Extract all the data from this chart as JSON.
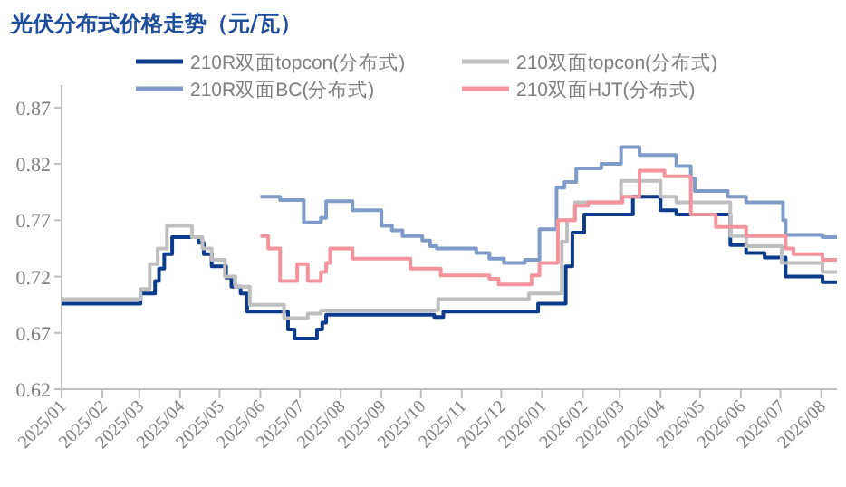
{
  "chart_data": {
    "type": "step",
    "title": "光伏分布式价格走势（元/瓦）",
    "xlim": [
      "2025-01-01",
      "2026-08-13"
    ],
    "ylim": [
      0.62,
      0.89
    ],
    "yticks": [
      0.62,
      0.67,
      0.72,
      0.77,
      0.82,
      0.87
    ],
    "xticks": [
      {
        "value": "2025-01-01",
        "label": "2025/01"
      },
      {
        "value": "2025-02-01",
        "label": "2025/02"
      },
      {
        "value": "2025-03-01",
        "label": "2025/03"
      },
      {
        "value": "2025-04-01",
        "label": "2025/04"
      },
      {
        "value": "2025-05-01",
        "label": "2025/05"
      },
      {
        "value": "2025-06-01",
        "label": "2025/06"
      },
      {
        "value": "2025-07-01",
        "label": "2025/07"
      },
      {
        "value": "2025-08-01",
        "label": "2025/08"
      },
      {
        "value": "2025-09-01",
        "label": "2025/09"
      },
      {
        "value": "2025-10-01",
        "label": "2025/10"
      },
      {
        "value": "2025-11-01",
        "label": "2025/11"
      },
      {
        "value": "2025-12-01",
        "label": "2025/12"
      },
      {
        "value": "2026-01-01",
        "label": "2026/01"
      },
      {
        "value": "2026-02-01",
        "label": "2026/02"
      },
      {
        "value": "2026-03-01",
        "label": "2026/03"
      },
      {
        "value": "2026-04-01",
        "label": "2026/04"
      },
      {
        "value": "2026-05-01",
        "label": "2026/05"
      },
      {
        "value": "2026-06-01",
        "label": "2026/06"
      },
      {
        "value": "2026-07-01",
        "label": "2026/07"
      },
      {
        "value": "2026-08-01",
        "label": "2026/08"
      }
    ],
    "grid": false,
    "legend": "top",
    "marker": "none",
    "line_style": "solid",
    "series": [
      {
        "name": "210R双面topcon(分布式)",
        "color": "#0b3c8c",
        "x": [
          "2025-01-01",
          "2025-03-02",
          "2025-03-13",
          "2025-03-16",
          "2025-03-20",
          "2025-03-26",
          "2025-04-15",
          "2025-04-19",
          "2025-04-25",
          "2025-05-06",
          "2025-05-10",
          "2025-05-17",
          "2025-05-22",
          "2025-06-22",
          "2025-06-27",
          "2025-07-14",
          "2025-07-18",
          "2025-07-21",
          "2025-10-11",
          "2025-10-18",
          "2025-12-29",
          "2026-01-19",
          "2026-01-24",
          "2026-02-02",
          "2026-03-11",
          "2026-04-01",
          "2026-04-13",
          "2026-05-24",
          "2026-06-05",
          "2026-06-19",
          "2026-07-05",
          "2026-08-02",
          "2026-08-13"
        ],
        "values": [
          0.696,
          0.705,
          0.716,
          0.727,
          0.74,
          0.755,
          0.75,
          0.74,
          0.729,
          0.719,
          0.711,
          0.705,
          0.689,
          0.673,
          0.665,
          0.673,
          0.679,
          0.686,
          0.684,
          0.689,
          0.696,
          0.729,
          0.759,
          0.775,
          0.791,
          0.779,
          0.775,
          0.748,
          0.741,
          0.737,
          0.72,
          0.715,
          0.715
        ]
      },
      {
        "name": "210双面topcon(分布式)",
        "color": "#bfbfbf",
        "x": [
          "2025-01-01",
          "2025-03-02",
          "2025-03-09",
          "2025-03-15",
          "2025-03-22",
          "2025-04-10",
          "2025-04-18",
          "2025-04-25",
          "2025-05-05",
          "2025-05-13",
          "2025-05-24",
          "2025-06-19",
          "2025-07-07",
          "2025-07-17",
          "2025-10-14",
          "2025-12-22",
          "2026-01-16",
          "2026-01-20",
          "2026-01-26",
          "2026-03-02",
          "2026-04-01",
          "2026-04-13",
          "2026-05-24",
          "2026-06-05",
          "2026-07-02",
          "2026-08-02",
          "2026-08-13"
        ],
        "values": [
          0.7,
          0.709,
          0.731,
          0.745,
          0.765,
          0.755,
          0.745,
          0.735,
          0.72,
          0.711,
          0.695,
          0.683,
          0.687,
          0.69,
          0.7,
          0.705,
          0.751,
          0.77,
          0.786,
          0.805,
          0.791,
          0.786,
          0.756,
          0.747,
          0.732,
          0.724,
          0.724
        ]
      },
      {
        "name": "210R双面BC(分布式)",
        "color": "#7f9cc9",
        "x": [
          "2025-06-01",
          "2025-06-16",
          "2025-07-04",
          "2025-07-17",
          "2025-07-21",
          "2025-08-10",
          "2025-09-01",
          "2025-09-09",
          "2025-09-17",
          "2025-10-02",
          "2025-10-08",
          "2025-10-13",
          "2025-11-12",
          "2025-11-22",
          "2025-12-03",
          "2025-12-19",
          "2025-12-30",
          "2026-01-12",
          "2026-01-18",
          "2026-01-27",
          "2026-02-15",
          "2026-03-02",
          "2026-03-16",
          "2026-04-13",
          "2026-04-24",
          "2026-04-27",
          "2026-05-22",
          "2026-06-05",
          "2026-07-03",
          "2026-07-05",
          "2026-08-02",
          "2026-08-13"
        ],
        "values": [
          0.791,
          0.788,
          0.768,
          0.772,
          0.787,
          0.779,
          0.765,
          0.761,
          0.756,
          0.752,
          0.747,
          0.745,
          0.741,
          0.736,
          0.732,
          0.735,
          0.762,
          0.799,
          0.804,
          0.816,
          0.82,
          0.835,
          0.828,
          0.818,
          0.807,
          0.796,
          0.791,
          0.786,
          0.77,
          0.757,
          0.755,
          0.755
        ]
      },
      {
        "name": "210双面HJT(分布式)",
        "color": "#f2939d",
        "x": [
          "2025-06-01",
          "2025-06-07",
          "2025-06-16",
          "2025-06-29",
          "2025-07-07",
          "2025-07-17",
          "2025-07-21",
          "2025-07-24",
          "2025-08-10",
          "2025-09-23",
          "2025-10-16",
          "2025-11-22",
          "2025-11-29",
          "2025-12-24",
          "2025-12-30",
          "2026-01-13",
          "2026-01-26",
          "2026-02-05",
          "2026-03-03",
          "2026-03-16",
          "2026-04-04",
          "2026-04-24",
          "2026-05-13",
          "2026-06-05",
          "2026-07-05",
          "2026-07-11",
          "2026-08-02",
          "2026-08-13"
        ],
        "values": [
          0.756,
          0.745,
          0.716,
          0.731,
          0.716,
          0.724,
          0.732,
          0.745,
          0.736,
          0.727,
          0.721,
          0.718,
          0.713,
          0.721,
          0.732,
          0.77,
          0.783,
          0.786,
          0.791,
          0.814,
          0.809,
          0.775,
          0.764,
          0.756,
          0.745,
          0.74,
          0.735,
          0.735
        ]
      }
    ]
  }
}
